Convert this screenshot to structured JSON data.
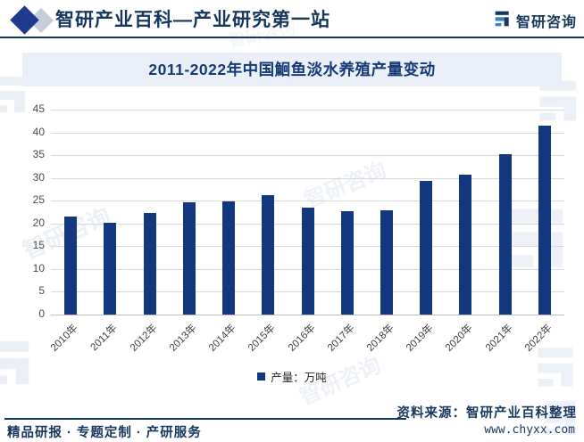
{
  "header": {
    "title": "智研产业百科—产业研究第一站",
    "brand": "智研咨询"
  },
  "banner": {
    "title": "2011-2022年中国鮰鱼淡水养殖产量变动"
  },
  "chart_data": {
    "type": "bar",
    "title": "2011-2022年中国鮰鱼淡水养殖产量变动",
    "categories": [
      "2010年",
      "2011年",
      "2012年",
      "2013年",
      "2014年",
      "2015年",
      "2016年",
      "2017年",
      "2018年",
      "2019年",
      "2020年",
      "2021年",
      "2022年"
    ],
    "values": [
      21.5,
      20.2,
      22.3,
      24.6,
      24.8,
      26.3,
      23.4,
      22.7,
      22.9,
      29.4,
      30.7,
      35.3,
      41.5
    ],
    "legend": "产量：万吨",
    "xlabel": "",
    "ylabel": "",
    "ylim": [
      0,
      45
    ],
    "ytick_step": 5,
    "grid": true,
    "legend_position": "bottom",
    "bar_color": "#14387F"
  },
  "legend": {
    "label": "产量：万吨"
  },
  "footer": {
    "services": "精品研报 · 专题定制 · 产研服务",
    "source": "资料来源：智研产业百科整理",
    "website": "www.chyxx.com"
  },
  "watermark": {
    "text": "智研咨询"
  },
  "colors": {
    "bar": "#14387F",
    "navy_text": "#16365C",
    "banner_bg": "#EAEFF8",
    "gridline": "#D9D9D9",
    "brand_teal": "#2E86C1"
  }
}
